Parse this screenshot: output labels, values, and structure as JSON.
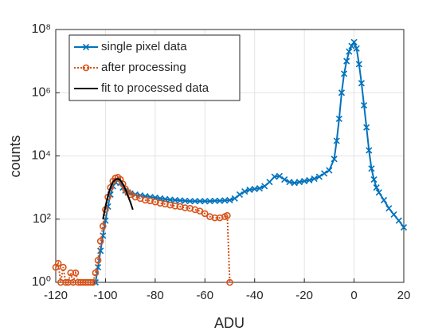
{
  "chart_data": {
    "type": "line",
    "xlabel": "ADU",
    "ylabel": "counts",
    "xlim": [
      -120,
      20
    ],
    "xticks": [
      -120,
      -100,
      -80,
      -60,
      -40,
      -20,
      0,
      20
    ],
    "ylim": [
      1,
      100000000
    ],
    "log_y": true,
    "yticks": [
      {
        "value": 1,
        "label": "10⁰"
      },
      {
        "value": 100,
        "label": "10²"
      },
      {
        "value": 10000,
        "label": "10⁴"
      },
      {
        "value": 1000000,
        "label": "10⁶"
      },
      {
        "value": 100000000,
        "label": "10⁸"
      }
    ],
    "grid": true,
    "legend": "upper left",
    "series": [
      {
        "name": "single pixel data",
        "color": "#0072bd",
        "marker": "x",
        "line": "solid",
        "x": [
          -104,
          -103,
          -102,
          -101,
          -100,
          -99,
          -98,
          -97,
          -96,
          -95,
          -94,
          -93,
          -92,
          -91,
          -90,
          -88,
          -86,
          -84,
          -82,
          -80,
          -78,
          -76,
          -74,
          -72,
          -70,
          -68,
          -66,
          -64,
          -62,
          -60,
          -58,
          -56,
          -54,
          -52,
          -50,
          -48,
          -46,
          -44,
          -42,
          -40,
          -38,
          -36,
          -34,
          -32,
          -30,
          -28,
          -26,
          -24,
          -22,
          -20,
          -18,
          -16,
          -14,
          -12,
          -10,
          -8,
          -7,
          -6,
          -5,
          -4,
          -3,
          -2,
          -1,
          0,
          1,
          2,
          3,
          4,
          5,
          6,
          7,
          8,
          9,
          10,
          12,
          14,
          16,
          18,
          20
        ],
        "values": [
          1,
          3,
          10,
          30,
          90,
          250,
          600,
          1100,
          1500,
          1700,
          1400,
          1000,
          800,
          700,
          650,
          600,
          560,
          530,
          500,
          480,
          450,
          430,
          410,
          400,
          390,
          380,
          370,
          370,
          370,
          370,
          370,
          380,
          380,
          390,
          400,
          450,
          600,
          750,
          850,
          900,
          950,
          1100,
          1500,
          2200,
          2300,
          1800,
          1500,
          1400,
          1500,
          1600,
          1700,
          1900,
          2200,
          2800,
          3500,
          8000,
          30000,
          150000,
          1000000,
          4000000,
          10000000,
          20000000,
          30000000,
          40000000,
          25000000,
          8000000,
          2000000,
          400000,
          80000,
          15000,
          4000,
          1800,
          1000,
          700,
          400,
          220,
          140,
          90,
          55
        ]
      },
      {
        "name": "after processing",
        "color": "#d95319",
        "marker": "o",
        "line": "dotted",
        "x": [
          -120,
          -119,
          -118,
          -117,
          -116,
          -115,
          -114,
          -113,
          -112,
          -111,
          -110,
          -109,
          -108,
          -107,
          -106,
          -105,
          -104,
          -103,
          -102,
          -101,
          -100,
          -99,
          -98,
          -97,
          -96,
          -95,
          -94,
          -93,
          -92,
          -91,
          -90,
          -88,
          -86,
          -84,
          -82,
          -80,
          -78,
          -76,
          -74,
          -72,
          -70,
          -68,
          -66,
          -64,
          -62,
          -60,
          -58,
          -56,
          -54,
          -52,
          -51,
          -50
        ],
        "values": [
          3,
          4,
          1,
          3,
          1,
          1,
          2,
          1,
          2,
          1,
          1,
          1,
          1,
          1,
          1,
          1,
          2,
          5,
          20,
          60,
          200,
          500,
          1000,
          1600,
          2000,
          2100,
          1800,
          1300,
          900,
          700,
          600,
          500,
          450,
          400,
          380,
          350,
          320,
          300,
          280,
          260,
          250,
          230,
          220,
          200,
          180,
          150,
          120,
          110,
          110,
          120,
          130,
          1
        ]
      },
      {
        "name": "fit to processed data",
        "color": "#000000",
        "marker": "none",
        "line": "solid",
        "x": [
          -101,
          -100,
          -99,
          -98,
          -97,
          -96,
          -95,
          -94,
          -93,
          -92,
          -91,
          -90,
          -89
        ],
        "values": [
          100,
          250,
          550,
          1000,
          1500,
          1800,
          1900,
          1700,
          1300,
          900,
          550,
          350,
          200
        ]
      }
    ]
  }
}
